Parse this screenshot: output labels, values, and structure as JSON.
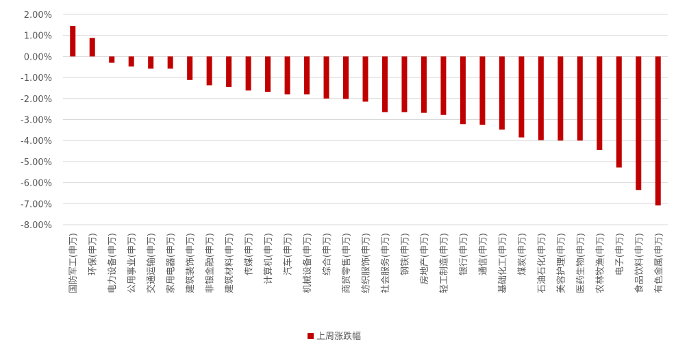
{
  "chart_data": {
    "type": "bar",
    "categories": [
      "国防军工(申万)",
      "环保(申万)",
      "电力设备(申万)",
      "公用事业(申万)",
      "交通运输(申万)",
      "家用电器(申万)",
      "建筑装饰(申万)",
      "非银金融(申万)",
      "建筑材料(申万)",
      "传媒(申万)",
      "计算机(申万)",
      "汽车(申万)",
      "机械设备(申万)",
      "综合(申万)",
      "商贸零售(申万)",
      "纺织服饰(申万)",
      "社会服务(申万)",
      "钢铁(申万)",
      "房地产(申万)",
      "轻工制造(申万)",
      "银行(申万)",
      "通信(申万)",
      "基础化工(申万)",
      "煤炭(申万)",
      "石油石化(申万)",
      "美容护理(申万)",
      "医药生物(申万)",
      "农林牧渔(申万)",
      "电子(申万)",
      "食品饮料(申万)",
      "有色金属(申万)"
    ],
    "series": [
      {
        "name": "上周涨跌幅",
        "values": [
          1.45,
          0.88,
          -0.3,
          -0.48,
          -0.58,
          -0.58,
          -1.12,
          -1.37,
          -1.45,
          -1.62,
          -1.68,
          -1.8,
          -1.8,
          -2.0,
          -2.02,
          -2.15,
          -2.65,
          -2.65,
          -2.68,
          -2.78,
          -3.22,
          -3.25,
          -3.48,
          -3.85,
          -3.98,
          -4.0,
          -4.0,
          -4.45,
          -5.28,
          -6.35,
          -7.08
        ]
      }
    ],
    "ylim": [
      -8,
      2
    ],
    "yticks": [
      "2.00%",
      "1.00%",
      "0.00%",
      "-1.00%",
      "-2.00%",
      "-3.00%",
      "-4.00%",
      "-5.00%",
      "-6.00%",
      "-7.00%",
      "-8.00%"
    ],
    "grid": true,
    "legend_position": "bottom",
    "colors": {
      "bar": "#C00000",
      "grid": "#D9D9D9",
      "text": "#595959"
    }
  }
}
